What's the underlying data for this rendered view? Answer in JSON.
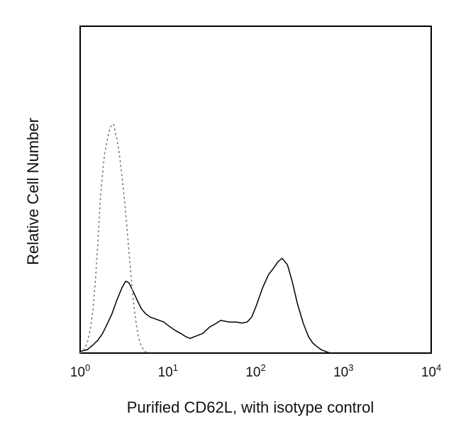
{
  "chart_data": {
    "type": "line",
    "title": "",
    "xlabel": "Purified CD62L, with isotype control",
    "ylabel": "Relative Cell Number",
    "x_scale": "log",
    "xlim": [
      1,
      10000
    ],
    "ylim": [
      0,
      100
    ],
    "x_ticks": [
      {
        "value": 1,
        "base": "10",
        "exp": "0"
      },
      {
        "value": 10,
        "base": "10",
        "exp": "1"
      },
      {
        "value": 100,
        "base": "10",
        "exp": "2"
      },
      {
        "value": 1000,
        "base": "10",
        "exp": "3"
      },
      {
        "value": 10000,
        "base": "10",
        "exp": "4"
      }
    ],
    "grid": false,
    "legend": "none",
    "series": [
      {
        "style": "solid",
        "color": "#000000",
        "x": [
          1.0,
          1.2,
          1.4,
          1.6,
          1.8,
          2.0,
          2.3,
          2.6,
          3.0,
          3.3,
          3.6,
          4.0,
          4.5,
          5.0,
          5.6,
          6.3,
          7.1,
          8.0,
          9.0,
          10,
          12,
          14,
          16,
          18,
          20,
          25,
          30,
          35,
          40,
          50,
          60,
          70,
          80,
          90,
          100,
          120,
          140,
          160,
          180,
          200,
          230,
          260,
          300,
          350,
          400,
          450,
          500,
          560,
          630,
          700
        ],
        "y": [
          0.5,
          1,
          2.5,
          4,
          6,
          8.5,
          12,
          16,
          20,
          22,
          21.5,
          19,
          16,
          13.5,
          12,
          11,
          10.5,
          10,
          9.5,
          8.5,
          7,
          6,
          5,
          4.5,
          5,
          6,
          8,
          9,
          10,
          9.5,
          9.5,
          9.2,
          9.5,
          11,
          14,
          20,
          24,
          26,
          28,
          29,
          27,
          22,
          15,
          9,
          5,
          3,
          2,
          1,
          0.5,
          0
        ]
      },
      {
        "style": "dotted",
        "color": "#777777",
        "x": [
          1.0,
          1.1,
          1.2,
          1.3,
          1.4,
          1.5,
          1.6,
          1.7,
          1.8,
          1.9,
          2.0,
          2.1,
          2.2,
          2.3,
          2.4,
          2.5,
          2.6,
          2.8,
          3.0,
          3.2,
          3.4,
          3.6,
          3.8,
          4.0,
          4.3,
          4.6,
          5.0,
          5.5,
          6.0
        ],
        "y": [
          0,
          1,
          3,
          7,
          13,
          23,
          35,
          47,
          55,
          61,
          64,
          67,
          69,
          70,
          70,
          68,
          66,
          61,
          54,
          47,
          39,
          31,
          24,
          17,
          10,
          5,
          2,
          0.5,
          0
        ]
      }
    ]
  }
}
